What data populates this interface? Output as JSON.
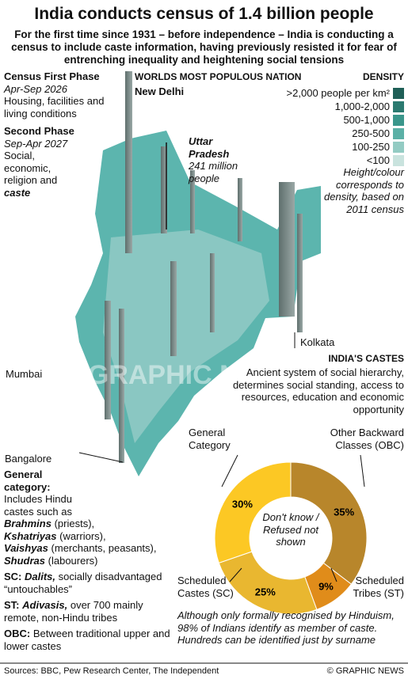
{
  "header": {
    "title": "India conducts census of 1.4 billion people",
    "subtitle": "For the first time since 1931 – before independence – India is conducting a census to include caste information, having previously resisted it for fear of entrenching inequality and heightening social tensions"
  },
  "phases": [
    {
      "name": "Census First Phase",
      "dates": "Apr-Sep 2026",
      "details": "Housing, facilities and living conditions"
    },
    {
      "name": "Second Phase",
      "dates": "Sep-Apr 2027",
      "details": "Social, economic, religion and",
      "details_emphasis": "caste"
    }
  ],
  "map": {
    "heading": "WORLDS MOST POPULOUS NATION",
    "cities": [
      "New Delhi",
      "Kolkata",
      "Mumbai",
      "Bangalore"
    ],
    "callout": {
      "name": "Uttar Pradesh",
      "text": "241 million people"
    },
    "watermark": "GRAPHIC NEWS"
  },
  "density": {
    "title": "DENSITY",
    "items": [
      {
        "label": ">2,000 people per km²",
        "color": "#1f5f57"
      },
      {
        "label": "1,000-2,000",
        "color": "#2b7a70"
      },
      {
        "label": "500-1,000",
        "color": "#3a968b"
      },
      {
        "label": "250-500",
        "color": "#5bb0a6"
      },
      {
        "label": "100-250",
        "color": "#93cbc3"
      },
      {
        "label": "<100",
        "color": "#c9e3de"
      }
    ],
    "note": "Height/colour corresponds to density, based on 2011 census"
  },
  "castes": {
    "title": "INDIA'S CASTES",
    "description": "Ancient system of social hierarchy, determines social standing, access to resources, education and economic opportunity",
    "note": "Although only formally recognised by Hinduism, 98% of Indians identify as member of caste. Hundreds can be identified just by surname"
  },
  "chart_data": {
    "type": "pie",
    "categories": [
      "Other Backward Classes (OBC)",
      "Scheduled Tribes (ST)",
      "Scheduled Castes (SC)",
      "General Category"
    ],
    "values": [
      35,
      9,
      25,
      30
    ],
    "value_labels": [
      "35%",
      "9%",
      "25%",
      "30%"
    ],
    "colors": [
      "#b8862b",
      "#e08c1a",
      "#e9b730",
      "#fcc824"
    ],
    "annotation": "Don't know / Refused not shown"
  },
  "definitions": {
    "general": {
      "term": "General category:",
      "intro": "Includes Hindu castes such as",
      "examples": [
        {
          "name": "Brahmins",
          "role": "(priests),"
        },
        {
          "name": "Kshatriyas",
          "role": "(warriors),"
        },
        {
          "name": "Vaishyas",
          "role": "(merchants, peasants),"
        },
        {
          "name": "Shudras",
          "role": "(labourers)"
        }
      ]
    },
    "sc": {
      "term": "SC:",
      "name": "Dalits,",
      "text": "socially disadvantaged “untouchables”"
    },
    "st": {
      "term": "ST:",
      "name": "Adivasis,",
      "text": "over 700 mainly remote, non-Hindu tribes"
    },
    "obc": {
      "term": "OBC:",
      "text": "Between traditional upper and lower castes"
    }
  },
  "footer": {
    "sources": "Sources: BBC, Pew Research Center, The Independent",
    "credit": "© GRAPHIC NEWS"
  }
}
